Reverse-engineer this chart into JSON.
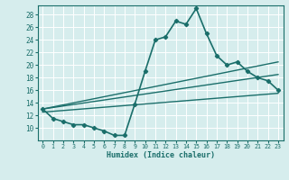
{
  "title": "",
  "xlabel": "Humidex (Indice chaleur)",
  "ylabel": "",
  "xlim": [
    -0.5,
    23.5
  ],
  "ylim": [
    8,
    29.5
  ],
  "yticks": [
    10,
    12,
    14,
    16,
    18,
    20,
    22,
    24,
    26,
    28
  ],
  "xticks": [
    0,
    1,
    2,
    3,
    4,
    5,
    6,
    7,
    8,
    9,
    10,
    11,
    12,
    13,
    14,
    15,
    16,
    17,
    18,
    19,
    20,
    21,
    22,
    23
  ],
  "background_color": "#d6eded",
  "grid_color": "#ffffff",
  "line_color": "#1a6e6a",
  "lines": [
    {
      "x": [
        0,
        1,
        2,
        3,
        4,
        5,
        6,
        7,
        8,
        9,
        10,
        11,
        12,
        13,
        14,
        15,
        16,
        17,
        18,
        19,
        20,
        21,
        22,
        23
      ],
      "y": [
        13,
        11.5,
        11,
        10.5,
        10.5,
        10,
        9.5,
        8.8,
        8.8,
        13.8,
        19,
        24,
        24.5,
        27,
        26.5,
        29,
        25,
        21.5,
        20,
        20.5,
        19,
        18,
        17.5,
        16
      ],
      "marker": "D",
      "markersize": 2.2,
      "linewidth": 1.2
    },
    {
      "x": [
        0,
        23
      ],
      "y": [
        12.5,
        15.5
      ],
      "marker": null,
      "linewidth": 1.0
    },
    {
      "x": [
        0,
        23
      ],
      "y": [
        13,
        18.5
      ],
      "marker": null,
      "linewidth": 1.0
    },
    {
      "x": [
        0,
        23
      ],
      "y": [
        13,
        20.5
      ],
      "marker": null,
      "linewidth": 1.0
    }
  ]
}
